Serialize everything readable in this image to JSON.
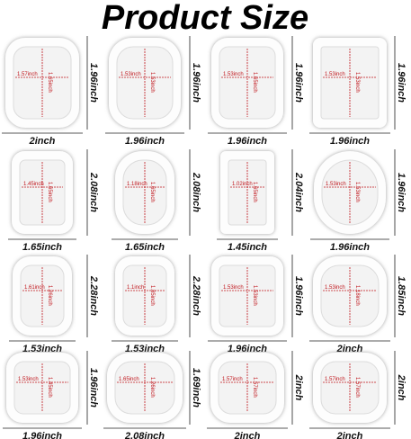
{
  "header": {
    "title": "Product Size"
  },
  "items": [
    {
      "inner_width": "1.57inch",
      "inner_height": "1.65inch",
      "outer_width": "2inch",
      "outer_height": "1.96inch"
    },
    {
      "inner_width": "1.53inch",
      "inner_height": "1.53inch",
      "outer_width": "1.96inch",
      "outer_height": "1.96inch"
    },
    {
      "inner_width": "1.53inch",
      "inner_height": "1.65inch",
      "outer_width": "1.96inch",
      "outer_height": "1.96inch"
    },
    {
      "inner_width": "1.53inch",
      "inner_height": "1.53inch",
      "outer_width": "1.96inch",
      "outer_height": "1.96inch"
    },
    {
      "inner_width": "1.45inch",
      "inner_height": "1.65inch",
      "outer_width": "1.65inch",
      "outer_height": "2.08inch"
    },
    {
      "inner_width": "1.18inch",
      "inner_height": "1.65inch",
      "outer_width": "1.65inch",
      "outer_height": "2.08inch"
    },
    {
      "inner_width": "1.02inch",
      "inner_height": "1.65inch",
      "outer_width": "1.45inch",
      "outer_height": "2.04inch"
    },
    {
      "inner_width": "1.53inch",
      "inner_height": "1.53inch",
      "outer_width": "1.96inch",
      "outer_height": "1.96inch"
    },
    {
      "inner_width": "1.61inch",
      "inner_height": "1.26inch",
      "outer_width": "1.53inch",
      "outer_height": "2.28inch"
    },
    {
      "inner_width": "1.1inch",
      "inner_height": "1.85inch",
      "outer_width": "1.53inch",
      "outer_height": "2.28inch"
    },
    {
      "inner_width": "1.53inch",
      "inner_height": "1.53inch",
      "outer_width": "1.96inch",
      "outer_height": "1.96inch"
    },
    {
      "inner_width": "1.53inch",
      "inner_height": "1.18inch",
      "outer_width": "2inch",
      "outer_height": "1.85inch"
    },
    {
      "inner_width": "1.53inch",
      "inner_height": "1.45inch",
      "outer_width": "1.96inch",
      "outer_height": "1.96inch"
    },
    {
      "inner_width": "1.65inch",
      "inner_height": "1.26inch",
      "outer_width": "2.08inch",
      "outer_height": "1.69inch"
    },
    {
      "inner_width": "1.57inch",
      "inner_height": "1.57inch",
      "outer_width": "2inch",
      "outer_height": "2inch"
    },
    {
      "inner_width": "1.57inch",
      "inner_height": "1.57inch",
      "outer_width": "2inch",
      "outer_height": "2inch"
    }
  ]
}
